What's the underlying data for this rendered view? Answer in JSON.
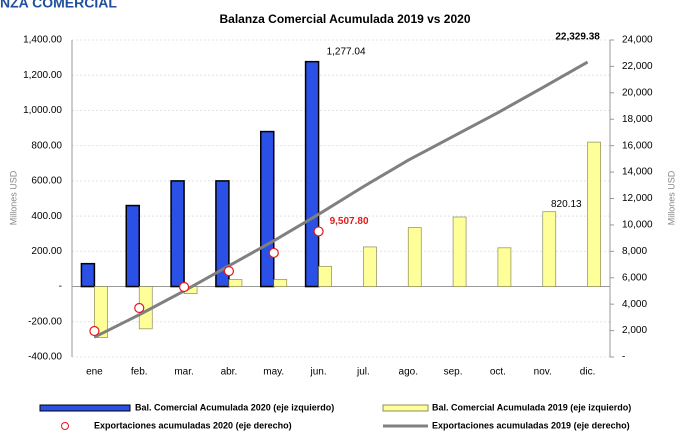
{
  "header": {
    "title": "NZA COMERCIAL"
  },
  "chart_data": {
    "type": "combo",
    "title": "Balanza Comercial Acumulada 2019 vs 2020",
    "ylabel": "Millones USD",
    "y2label": "Millones USD",
    "categories": [
      "ene",
      "feb.",
      "mar.",
      "abr.",
      "may.",
      "jun.",
      "jul.",
      "ago.",
      "sep.",
      "oct.",
      "nov.",
      "dic."
    ],
    "ylim": [
      -400,
      1400
    ],
    "yticks": [
      {
        "value": -400,
        "label": "-400.00"
      },
      {
        "value": -200,
        "label": "-200.00"
      },
      {
        "value": 0,
        "label": "-"
      },
      {
        "value": 200,
        "label": "200.00"
      },
      {
        "value": 400,
        "label": "400.00"
      },
      {
        "value": 600,
        "label": "600.00"
      },
      {
        "value": 800,
        "label": "800.00"
      },
      {
        "value": 1000,
        "label": "1,000.00"
      },
      {
        "value": 1200,
        "label": "1,200.00"
      },
      {
        "value": 1400,
        "label": "1,400.00"
      }
    ],
    "y2lim": [
      0,
      24000
    ],
    "y2ticks": [
      {
        "value": 0,
        "label": "-"
      },
      {
        "value": 2000,
        "label": "2,000"
      },
      {
        "value": 4000,
        "label": "4,000"
      },
      {
        "value": 6000,
        "label": "6,000"
      },
      {
        "value": 8000,
        "label": "8,000"
      },
      {
        "value": 10000,
        "label": "10,000"
      },
      {
        "value": 12000,
        "label": "12,000"
      },
      {
        "value": 14000,
        "label": "14,000"
      },
      {
        "value": 16000,
        "label": "16,000"
      },
      {
        "value": 18000,
        "label": "18,000"
      },
      {
        "value": 20000,
        "label": "20,000"
      },
      {
        "value": 22000,
        "label": "22,000"
      },
      {
        "value": 24000,
        "label": "24,000"
      }
    ],
    "grid": true,
    "legend": "bottom",
    "series": [
      {
        "name": "Bal. Comercial Acumulada 2020 (eje izquierdo)",
        "type": "bar",
        "color": "#2b50e6",
        "values": [
          130,
          460,
          600,
          600,
          880,
          1277.04,
          null,
          null,
          null,
          null,
          null,
          null
        ],
        "value_labels": [
          null,
          null,
          null,
          null,
          null,
          "1,277.04",
          null,
          null,
          null,
          null,
          null,
          null
        ]
      },
      {
        "name": "Bal. Comercial Acumulada 2019 (eje izquierdo)",
        "type": "bar",
        "color": "#ffff99",
        "values": [
          -290,
          -240,
          -40,
          40,
          40,
          115,
          225,
          335,
          395,
          220,
          425,
          820.13
        ],
        "value_labels": [
          null,
          null,
          null,
          null,
          null,
          null,
          null,
          null,
          null,
          null,
          null,
          "820.13"
        ]
      },
      {
        "name": "Exportaciones acumuladas 2020 (eje derecho)",
        "type": "scatter",
        "color": "#e31a1c",
        "axis": "y2",
        "values": [
          1970,
          3710,
          5300,
          6500,
          7880,
          9507.8,
          null,
          null,
          null,
          null,
          null,
          null
        ],
        "value_labels": [
          null,
          null,
          null,
          null,
          null,
          "9,507.80",
          null,
          null,
          null,
          null,
          null,
          null
        ]
      },
      {
        "name": "Exportaciones acumuladas 2019 (eje derecho)",
        "type": "line",
        "color": "#808080",
        "axis": "y2",
        "values": [
          1500,
          3200,
          5000,
          6900,
          8800,
          10800,
          12900,
          14900,
          16700,
          18500,
          20400,
          22329.38
        ],
        "value_labels": [
          null,
          null,
          null,
          null,
          null,
          null,
          null,
          null,
          null,
          null,
          null,
          "22,329.38"
        ]
      }
    ]
  }
}
